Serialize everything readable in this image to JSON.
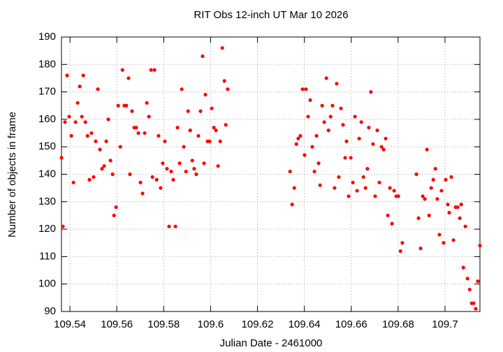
{
  "chart_data": {
    "type": "scatter",
    "title": "RIT Obs 12-inch UT Mar 10 2026",
    "x_label": "Julian Date - 2461000",
    "y_label": "Number of objects in frame",
    "color": "#ff0000",
    "grid": true,
    "xlim": [
      109.5364,
      109.7149
    ],
    "ylim": [
      90,
      190
    ],
    "xticks": [
      109.54,
      109.56,
      109.58,
      109.6,
      109.62,
      109.64,
      109.66,
      109.68,
      109.7
    ],
    "yticks": [
      90,
      100,
      110,
      120,
      130,
      140,
      150,
      160,
      170,
      180,
      190
    ],
    "x": [
      109.5364,
      109.537,
      109.5379,
      109.5388,
      109.5397,
      109.5406,
      109.5415,
      109.5424,
      109.5433,
      109.5442,
      109.5451,
      109.5457,
      109.5466,
      109.5475,
      109.5483,
      109.5492,
      109.5501,
      109.551,
      109.5519,
      109.5528,
      109.5537,
      109.5546,
      109.5555,
      109.5564,
      109.5573,
      109.5582,
      109.5588,
      109.5597,
      109.5606,
      109.5615,
      109.5624,
      109.5632,
      109.5641,
      109.565,
      109.5656,
      109.5665,
      109.5674,
      109.5683,
      109.5692,
      109.5701,
      109.571,
      109.5719,
      109.5728,
      109.5737,
      109.5746,
      109.5752,
      109.5761,
      109.577,
      109.5778,
      109.5787,
      109.5796,
      109.5805,
      109.5814,
      109.5823,
      109.5832,
      109.5841,
      109.585,
      109.5859,
      109.5868,
      109.5877,
      109.5886,
      109.5895,
      109.5904,
      109.5913,
      109.5922,
      109.593,
      109.5939,
      109.5948,
      109.5957,
      109.5966,
      109.5972,
      109.5978,
      109.5987,
      109.5996,
      109.6005,
      109.6014,
      109.6023,
      109.6032,
      109.6041,
      109.605,
      109.6059,
      109.6065,
      109.6073,
      109.6339,
      109.6348,
      109.6357,
      109.6366,
      109.6374,
      109.6383,
      109.6392,
      109.6401,
      109.6407,
      109.6416,
      109.6425,
      109.6434,
      109.6443,
      109.6452,
      109.6461,
      109.6467,
      109.6476,
      109.6485,
      109.6494,
      109.6503,
      109.6512,
      109.652,
      109.6529,
      109.6538,
      109.6547,
      109.6556,
      109.6565,
      109.6574,
      109.658,
      109.6589,
      109.6598,
      109.6607,
      109.6616,
      109.6625,
      109.6634,
      109.6643,
      109.6652,
      109.6661,
      109.6669,
      109.6675,
      109.6684,
      109.6693,
      109.6702,
      109.6711,
      109.672,
      109.6729,
      109.6738,
      109.6747,
      109.6756,
      109.6765,
      109.6774,
      109.6783,
      109.6792,
      109.6801,
      109.681,
      109.6818,
      109.6878,
      109.6887,
      109.6896,
      109.6905,
      109.6914,
      109.6923,
      109.6932,
      109.6941,
      109.695,
      109.6959,
      109.6967,
      109.6976,
      109.6985,
      109.6994,
      109.7003,
      109.7012,
      109.7018,
      109.7027,
      109.7036,
      109.7045,
      109.7054,
      109.7063,
      109.7069,
      109.7078,
      109.7087,
      109.7096,
      109.7105,
      109.7114,
      109.7122,
      109.7131,
      109.714,
      109.7149
    ],
    "values": [
      146,
      121,
      159,
      176,
      161,
      154,
      137,
      159,
      166,
      172,
      161,
      176,
      159,
      154,
      138,
      155,
      139,
      152,
      171,
      149,
      142,
      143,
      152,
      160,
      145,
      140,
      125,
      128,
      165,
      150,
      178,
      165,
      165,
      175,
      140,
      163,
      157,
      157,
      155,
      137,
      133,
      155,
      166,
      161,
      178,
      139,
      178,
      138,
      154,
      135,
      144,
      152,
      142,
      121,
      141,
      138,
      121,
      157,
      144,
      171,
      150,
      141,
      163,
      156,
      145,
      142,
      140,
      154,
      163,
      183,
      144,
      169,
      152,
      152,
      164,
      157,
      156,
      143,
      152,
      186,
      174,
      158,
      171,
      141,
      129,
      135,
      151,
      153,
      154,
      171,
      147,
      171,
      161,
      167,
      150,
      141,
      154,
      144,
      136,
      165,
      159,
      175,
      156,
      161,
      165,
      135,
      173,
      139,
      164,
      158,
      146,
      152,
      132,
      146,
      137,
      161,
      134,
      153,
      159,
      139,
      135,
      142,
      157,
      170,
      151,
      132,
      156,
      137,
      150,
      149,
      153,
      125,
      135,
      122,
      134,
      132,
      132,
      112,
      115,
      140,
      124,
      113,
      132,
      131,
      149,
      125,
      135,
      138,
      142,
      131,
      118,
      134,
      115,
      138,
      129,
      126,
      139,
      116,
      128,
      128,
      124,
      129,
      106,
      121,
      102,
      98,
      93,
      93,
      91,
      101,
      114
    ]
  }
}
